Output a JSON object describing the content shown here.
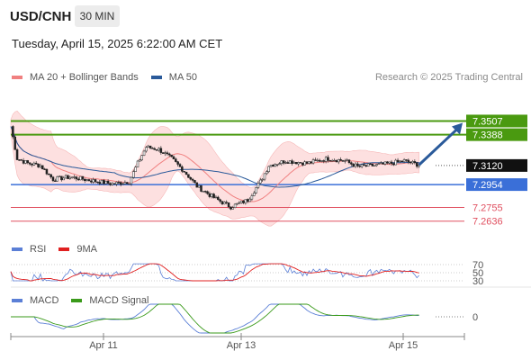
{
  "header": {
    "symbol": "USD/CNH",
    "timeframe": "30 MIN",
    "datetime": "Tuesday, April 15, 2025 6:22:00 AM CET",
    "research": "Research © 2025 Trading Central"
  },
  "legend_main": [
    {
      "label": "MA 20 + Bollinger Bands",
      "color": "#f08080"
    },
    {
      "label": "MA 50",
      "color": "#2a5a9a"
    }
  ],
  "legend_rsi": [
    {
      "label": "RSI",
      "color": "#5b7fd6"
    },
    {
      "label": "9MA",
      "color": "#e02020"
    }
  ],
  "legend_macd": [
    {
      "label": "MACD",
      "color": "#5b7fd6"
    },
    {
      "label": "MACD Signal",
      "color": "#3a9a1a"
    }
  ],
  "colors": {
    "resistance": "#4a9a10",
    "support": "#3a6fd8",
    "target": "#e05060",
    "current_bg": "#111111",
    "arrow": "#2a5a9a",
    "band_fill": "#fde0e0"
  },
  "chart_data": {
    "type": "candlestick",
    "y_range": [
      7.254,
      7.362
    ],
    "x_labels": [
      "Apr 11",
      "Apr 13",
      "Apr 15"
    ],
    "levels": [
      {
        "value": 7.3507,
        "label": "7.3507",
        "kind": "resistance"
      },
      {
        "value": 7.3388,
        "label": "7.3388",
        "kind": "resistance"
      },
      {
        "value": 7.312,
        "label": "7.3120",
        "kind": "current"
      },
      {
        "value": 7.2954,
        "label": "7.2954",
        "kind": "support"
      },
      {
        "value": 7.2755,
        "label": "7.2755",
        "kind": "target"
      },
      {
        "value": 7.2636,
        "label": "7.2636",
        "kind": "target"
      }
    ],
    "price_path": [
      [
        0,
        7.346
      ],
      [
        3,
        7.318
      ],
      [
        8,
        7.314
      ],
      [
        14,
        7.312
      ],
      [
        20,
        7.3
      ],
      [
        28,
        7.302
      ],
      [
        38,
        7.299
      ],
      [
        48,
        7.296
      ],
      [
        56,
        7.298
      ],
      [
        60,
        7.314
      ],
      [
        64,
        7.328
      ],
      [
        70,
        7.326
      ],
      [
        76,
        7.318
      ],
      [
        82,
        7.307
      ],
      [
        88,
        7.294
      ],
      [
        96,
        7.284
      ],
      [
        104,
        7.276
      ],
      [
        112,
        7.282
      ],
      [
        118,
        7.298
      ],
      [
        122,
        7.312
      ],
      [
        130,
        7.316
      ],
      [
        140,
        7.314
      ],
      [
        150,
        7.318
      ],
      [
        158,
        7.316
      ],
      [
        164,
        7.311
      ],
      [
        172,
        7.312
      ],
      [
        180,
        7.314
      ],
      [
        186,
        7.316
      ],
      [
        192,
        7.313
      ]
    ],
    "rsi_levels": [
      70,
      50,
      30
    ],
    "macd_level": 0,
    "projection_target": 7.3507
  }
}
